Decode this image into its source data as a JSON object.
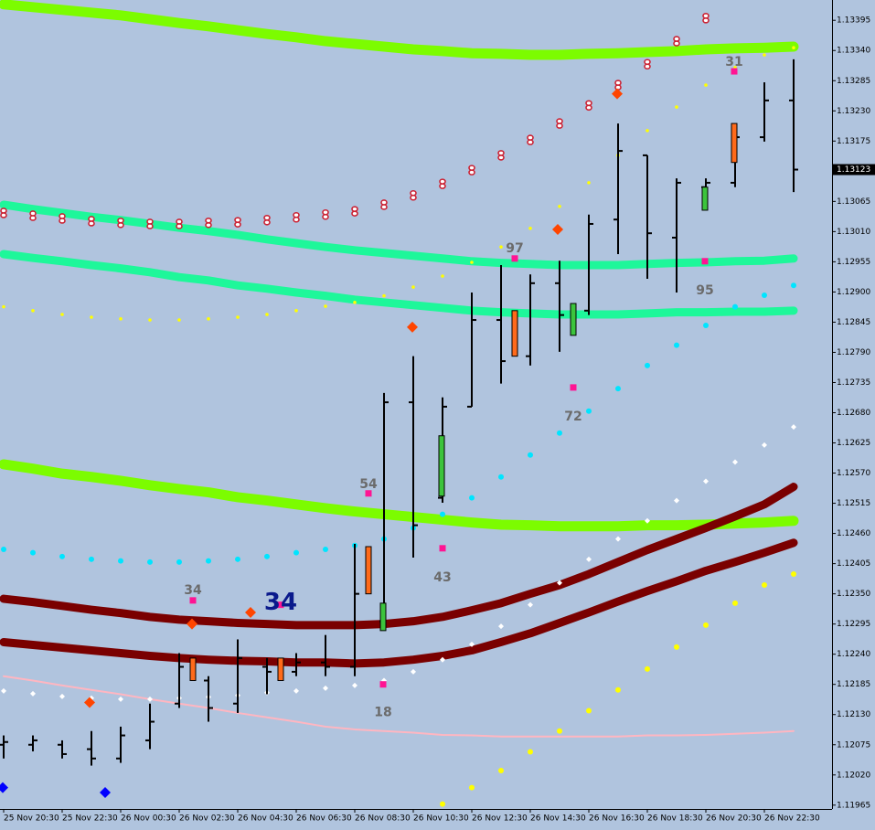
{
  "chart_data": {
    "type": "ohlc",
    "categories": [
      "25 Nov 20:30",
      "25 Nov 22:30",
      "26 Nov 00:30",
      "26 Nov 02:30",
      "26 Nov 04:30",
      "26 Nov 06:30",
      "26 Nov 08:30",
      "26 Nov 10:30",
      "26 Nov 12:30",
      "26 Nov 14:30",
      "26 Nov 16:30",
      "26 Nov 18:30",
      "26 Nov 20:30",
      "26 Nov 22:30"
    ],
    "ylim": [
      1.11958,
      1.13432
    ],
    "yticks": [
      1.11965,
      {
        "value": 1.1202,
        "label": "1.12020"
      },
      1.12075,
      {
        "value": 1.1213,
        "label": "1.12130"
      },
      1.12185,
      {
        "value": 1.1224,
        "label": "1.12240"
      },
      1.12295,
      {
        "value": 1.1235,
        "label": "1.12350"
      },
      1.12405,
      {
        "value": 1.1246,
        "label": "1.12460"
      },
      1.12515,
      {
        "value": 1.1257,
        "label": "1.12570"
      },
      1.12625,
      {
        "value": 1.1268,
        "label": "1.12680"
      },
      1.12735,
      {
        "value": 1.1279,
        "label": "1.12790"
      },
      1.12845,
      {
        "value": 1.129,
        "label": "1.12900"
      },
      1.12955,
      {
        "value": 1.1301,
        "label": "1.13010"
      },
      1.13065,
      {
        "value": 1.1312,
        "label": "1.13120"
      },
      1.13175,
      {
        "value": 1.1323,
        "label": "1.13230"
      },
      1.13285,
      {
        "value": 1.1334,
        "label": "1.13340"
      },
      1.13395
    ],
    "current_price": 1.13123,
    "bars": {
      "color": "#000000",
      "open": [
        1.12075,
        1.12075,
        1.12075,
        1.12067,
        1.1205,
        1.12083,
        1.1215,
        1.12192,
        1.1215,
        1.12217,
        1.12208,
        1.12225,
        1.12217,
        1.123,
        1.12699,
        1.12525,
        1.12691,
        1.12849,
        1.12783,
        1.12916,
        1.12866,
        1.13032,
        1.13149,
        1.12999,
        1.13091,
        1.13099,
        1.13182,
        1.13249
      ],
      "high": [
        1.12092,
        1.12092,
        1.12083,
        1.121,
        1.12108,
        1.1215,
        1.12242,
        1.122,
        1.12267,
        1.12233,
        1.12242,
        1.12275,
        1.12441,
        1.12716,
        1.12783,
        1.12708,
        1.12899,
        1.12949,
        1.12932,
        1.12957,
        1.13041,
        1.13207,
        1.13149,
        1.13107,
        1.13107,
        1.13207,
        1.13282,
        1.13324
      ],
      "low": [
        1.1205,
        1.12063,
        1.1205,
        1.12037,
        1.12042,
        1.12067,
        1.12142,
        1.12117,
        1.12133,
        1.12167,
        1.122,
        1.122,
        1.122,
        1.12283,
        1.12416,
        1.12516,
        1.12691,
        1.12733,
        1.12766,
        1.12791,
        1.12858,
        1.12969,
        1.12924,
        1.12899,
        1.13049,
        1.13091,
        1.13174,
        1.13082
      ],
      "close": [
        1.1208,
        1.12083,
        1.12058,
        1.1205,
        1.12092,
        1.12117,
        1.12217,
        1.12142,
        1.12233,
        1.12208,
        1.12225,
        1.12217,
        1.1235,
        1.12699,
        1.12475,
        1.12691,
        1.12849,
        1.12774,
        1.12916,
        1.12858,
        1.13024,
        1.13157,
        1.13007,
        1.13099,
        1.13099,
        1.13182,
        1.13249,
        1.13123
      ]
    },
    "lines": [
      {
        "color": "#7cfc00",
        "values": [
          1.13424,
          1.13419,
          1.13414,
          1.13409,
          1.13404,
          1.13397,
          1.1339,
          1.13384,
          1.13377,
          1.1337,
          1.13364,
          1.13357,
          1.13352,
          1.13347,
          1.13342,
          1.13339,
          1.13335,
          1.13334,
          1.13332,
          1.13332,
          1.13334,
          1.13335,
          1.13337,
          1.13339,
          1.13342,
          1.13344,
          1.13345,
          1.13347
        ]
      },
      {
        "color": "#1ef79a",
        "values": [
          1.13059,
          1.13051,
          1.13044,
          1.13037,
          1.13031,
          1.13024,
          1.13017,
          1.13011,
          1.13004,
          1.12996,
          1.12989,
          1.12982,
          1.12976,
          1.12971,
          1.12966,
          1.12961,
          1.12956,
          1.12953,
          1.12951,
          1.12949,
          1.12949,
          1.12949,
          1.12951,
          1.12953,
          1.12954,
          1.12956,
          1.12957,
          1.12961
        ]
      },
      {
        "color": "#1ef79a",
        "values": [
          1.12969,
          1.12962,
          1.12956,
          1.12949,
          1.12943,
          1.12936,
          1.12927,
          1.12921,
          1.12912,
          1.12906,
          1.12899,
          1.12893,
          1.12886,
          1.12881,
          1.12876,
          1.12871,
          1.12866,
          1.12863,
          1.12861,
          1.12859,
          1.12859,
          1.12859,
          1.12861,
          1.12863,
          1.12863,
          1.12864,
          1.12864,
          1.12866
        ]
      },
      {
        "color": "#7cfc00",
        "values": [
          1.12586,
          1.12578,
          1.12569,
          1.12563,
          1.12556,
          1.12548,
          1.12541,
          1.12535,
          1.12526,
          1.1252,
          1.12513,
          1.12506,
          1.125,
          1.12495,
          1.1249,
          1.12485,
          1.1248,
          1.12476,
          1.12475,
          1.12473,
          1.12473,
          1.12473,
          1.12475,
          1.12475,
          1.12476,
          1.12478,
          1.1248,
          1.12483
        ]
      },
      {
        "color": "#7a0000",
        "values": [
          1.12341,
          1.12335,
          1.12328,
          1.12321,
          1.12315,
          1.12308,
          1.12303,
          1.123,
          1.12297,
          1.12295,
          1.12293,
          1.12293,
          1.12293,
          1.12295,
          1.123,
          1.12308,
          1.1232,
          1.12333,
          1.1235,
          1.12366,
          1.12386,
          1.12408,
          1.1243,
          1.1245,
          1.1247,
          1.12491,
          1.12513,
          1.12545
        ]
      },
      {
        "color": "#7a0000",
        "values": [
          1.12262,
          1.12257,
          1.12252,
          1.12247,
          1.12242,
          1.12237,
          1.12233,
          1.1223,
          1.12228,
          1.12227,
          1.12225,
          1.12225,
          1.12223,
          1.12225,
          1.1223,
          1.12237,
          1.12247,
          1.12262,
          1.12278,
          1.12297,
          1.12316,
          1.12336,
          1.12355,
          1.12373,
          1.12392,
          1.12408,
          1.12425,
          1.12443
        ]
      },
      {
        "color": "#ffb6c1",
        "values": [
          1.122,
          1.12192,
          1.12183,
          1.12175,
          1.12167,
          1.12158,
          1.1215,
          1.12142,
          1.12133,
          1.12125,
          1.12117,
          1.12108,
          1.12103,
          1.121,
          1.12097,
          1.12093,
          1.12092,
          1.1209,
          1.1209,
          1.1209,
          1.1209,
          1.1209,
          1.12092,
          1.12092,
          1.12093,
          1.12095,
          1.12097,
          1.121
        ]
      }
    ],
    "dots": [
      {
        "color": "#cc2233",
        "shape": "ring",
        "values": [
          1.13044,
          1.13039,
          1.13034,
          1.13029,
          1.13026,
          1.13024,
          1.13024,
          1.13026,
          1.13027,
          1.13031,
          1.13036,
          1.13041,
          1.13047,
          1.13059,
          1.13076,
          1.13097,
          1.13122,
          1.13149,
          1.13177,
          1.13207,
          1.1324,
          1.13277,
          1.13315,
          1.13357,
          1.13399,
          null,
          null,
          null
        ]
      },
      {
        "color": "#ffff00",
        "shape": "dot",
        "values": [
          1.12873,
          1.12866,
          1.12859,
          1.12854,
          1.12851,
          1.12849,
          1.12849,
          1.12851,
          1.12854,
          1.12859,
          1.12866,
          1.12874,
          1.12881,
          1.12893,
          1.12909,
          1.12929,
          1.12954,
          1.12982,
          1.13016,
          1.13056,
          1.13099,
          1.13149,
          1.13194,
          1.13237,
          1.13277,
          1.13309,
          1.13332,
          1.13345
        ]
      },
      {
        "color": "#00e5ff",
        "shape": "dot",
        "values": [
          1.12431,
          1.12425,
          1.12418,
          1.12413,
          1.1241,
          1.12408,
          1.12408,
          1.1241,
          1.12413,
          1.12418,
          1.12425,
          1.12431,
          1.12438,
          1.1245,
          1.1247,
          1.12495,
          1.12525,
          1.12563,
          1.12603,
          1.12643,
          1.12683,
          1.12724,
          1.12766,
          1.12803,
          1.12839,
          1.12873,
          1.12894,
          1.12912
        ]
      },
      {
        "color": "#ffffff",
        "shape": "diamond",
        "values": [
          1.12173,
          1.12168,
          1.12163,
          1.1216,
          1.12158,
          1.12158,
          1.1216,
          1.12162,
          1.12165,
          1.1217,
          1.12173,
          1.12178,
          1.12183,
          1.12192,
          1.12208,
          1.1223,
          1.12258,
          1.12291,
          1.1233,
          1.1237,
          1.12413,
          1.1245,
          1.12483,
          1.1252,
          1.12555,
          1.1259,
          1.12621,
          1.12654
        ]
      },
      {
        "color": "#ffff00",
        "shape": "dot",
        "values": [
          null,
          null,
          null,
          null,
          null,
          null,
          null,
          null,
          null,
          null,
          null,
          null,
          null,
          null,
          null,
          1.11967,
          1.11997,
          1.12028,
          1.12062,
          1.121,
          1.12137,
          1.12175,
          1.12213,
          1.12253,
          1.12293,
          1.12333,
          1.12366,
          1.12386
        ]
      }
    ],
    "bodies": [
      {
        "color": "#ff6a1a",
        "values": [
          [
            1.12233,
            1.12192
          ],
          [
            1.12233,
            1.12192
          ],
          [
            1.12436,
            1.1235
          ],
          [
            1.12866,
            1.12783
          ],
          [
            1.13207,
            1.13136
          ]
        ]
      },
      {
        "color": "#3cc43c",
        "values": [
          [
            1.12333,
            1.12283
          ],
          [
            1.12638,
            1.12528
          ],
          [
            1.12879,
            1.12821
          ],
          [
            1.13091,
            1.13049
          ]
        ]
      }
    ],
    "signals": [
      {
        "label": "34",
        "value": 1.12338
      },
      {
        "label": "54",
        "value": 1.12533
      },
      {
        "label": "43",
        "value": 1.12433
      },
      {
        "label": "18",
        "value": 1.12185
      },
      {
        "label": "97",
        "value": 1.12961
      },
      {
        "label": "72",
        "value": 1.12726
      },
      {
        "label": "95",
        "value": 1.12956
      },
      {
        "label": "31",
        "value": 1.13302
      }
    ],
    "big_signal": {
      "label": "34",
      "value": 1.1233
    },
    "signal_color": "#ff1493",
    "diamonds": [
      {
        "color": "#ff4500",
        "values": [
          1.12152,
          1.12295,
          1.12316,
          1.12836,
          1.13014,
          1.13261
        ]
      },
      {
        "color": "#0000ff",
        "values": [
          1.11997,
          1.11988
        ]
      }
    ]
  }
}
